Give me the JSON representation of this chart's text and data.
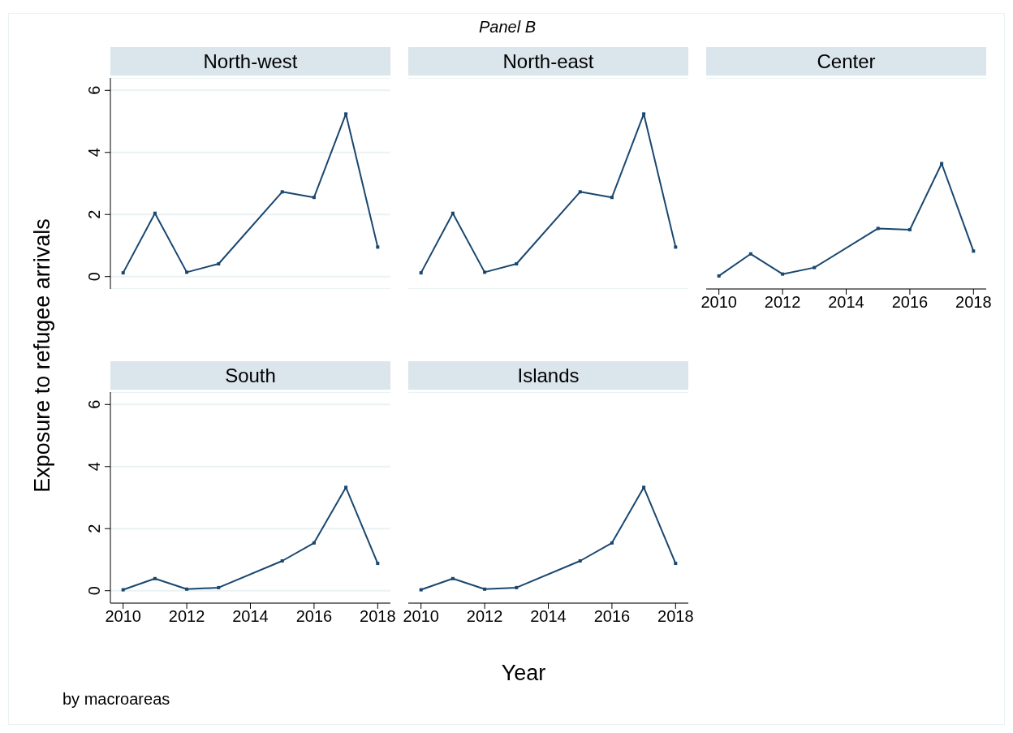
{
  "chart_data": [
    {
      "type": "line",
      "title": "North-west",
      "ylabel": "Exposure to refugee arrivals",
      "annotations": [
        "Panel B"
      ],
      "x": [
        2010,
        2011,
        2012,
        2013,
        2015,
        2016,
        2017,
        2018
      ],
      "values": [
        0.12,
        2.04,
        0.14,
        0.41,
        2.73,
        2.55,
        5.24,
        0.95
      ],
      "color": "#1a476f",
      "xlim": [
        2009.6,
        2018.4
      ],
      "xticks": [
        2010,
        2012,
        2014,
        2016,
        2018
      ],
      "ylim": [
        -0.4,
        6.4
      ],
      "yticks": [
        0,
        2,
        4,
        6
      ],
      "grid": "y",
      "marker": "square",
      "tick_labels": "y"
    },
    {
      "type": "line",
      "title": "North-east",
      "x": [
        2010,
        2011,
        2012,
        2013,
        2015,
        2016,
        2017,
        2018
      ],
      "values": [
        0.12,
        2.04,
        0.14,
        0.41,
        2.73,
        2.55,
        5.24,
        0.95
      ],
      "color": "#1a476f",
      "xlim": [
        2009.6,
        2018.4
      ],
      "xticks": [
        2010,
        2012,
        2014,
        2016,
        2018
      ],
      "ylim": [
        -0.4,
        6.4
      ],
      "yticks": [
        0,
        2,
        4,
        6
      ],
      "grid": "y",
      "marker": "square",
      "tick_labels": false
    },
    {
      "type": "line",
      "title": "Center",
      "x": [
        2010,
        2011,
        2012,
        2013,
        2015,
        2016,
        2017,
        2018
      ],
      "values": [
        0.02,
        0.73,
        0.08,
        0.29,
        1.55,
        1.51,
        3.64,
        0.82
      ],
      "color": "#1a476f",
      "xlim": [
        2009.6,
        2018.4
      ],
      "xticks": [
        2010,
        2012,
        2014,
        2016,
        2018
      ],
      "ylim": [
        -0.4,
        6.4
      ],
      "yticks": [
        0,
        2,
        4,
        6
      ],
      "grid": "y",
      "marker": "square",
      "tick_labels": "x"
    },
    {
      "type": "line",
      "title": "South",
      "annotations": [
        "by macroareas"
      ],
      "x": [
        2010,
        2011,
        2012,
        2013,
        2015,
        2016,
        2017,
        2018
      ],
      "values": [
        0.03,
        0.39,
        0.05,
        0.1,
        0.96,
        1.54,
        3.33,
        0.88
      ],
      "color": "#1a476f",
      "xlim": [
        2009.6,
        2018.4
      ],
      "xticks": [
        2010,
        2012,
        2014,
        2016,
        2018
      ],
      "ylim": [
        -0.4,
        6.4
      ],
      "yticks": [
        0,
        2,
        4,
        6
      ],
      "grid": "y",
      "marker": "square"
    },
    {
      "type": "line",
      "title": "Islands",
      "xlabel": "Year",
      "x": [
        2010,
        2011,
        2012,
        2013,
        2015,
        2016,
        2017,
        2018
      ],
      "values": [
        0.03,
        0.39,
        0.05,
        0.1,
        0.96,
        1.54,
        3.33,
        0.88
      ],
      "color": "#1a476f",
      "xlim": [
        2009.6,
        2018.4
      ],
      "xticks": [
        2010,
        2012,
        2014,
        2016,
        2018
      ],
      "ylim": [
        -0.4,
        6.4
      ],
      "yticks": [
        0,
        2,
        4,
        6
      ],
      "grid": "y",
      "marker": "square",
      "tick_labels": "x"
    }
  ]
}
